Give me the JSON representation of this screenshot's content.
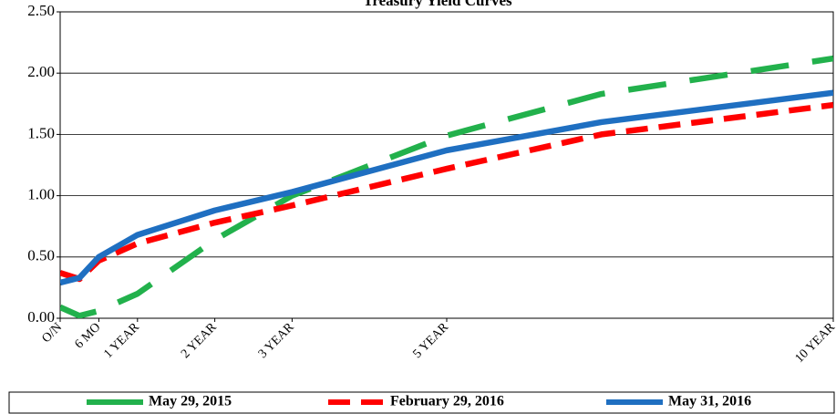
{
  "chart_data": {
    "type": "line",
    "title": "Treasury Yield Curves",
    "x": [
      0,
      0.25,
      0.5,
      1,
      2,
      3,
      5,
      7,
      10
    ],
    "xlim": [
      0,
      10
    ],
    "xticks": [
      {
        "value": 0,
        "label": "O/N"
      },
      {
        "value": 0.5,
        "label": "6 MO"
      },
      {
        "value": 1,
        "label": "1 YEAR"
      },
      {
        "value": 2,
        "label": "2 YEAR"
      },
      {
        "value": 3,
        "label": "3 YEAR"
      },
      {
        "value": 5,
        "label": "5 YEAR"
      },
      {
        "value": 10,
        "label": "10 YEAR"
      }
    ],
    "ylim": [
      0,
      2.5
    ],
    "yticks": [
      {
        "value": 0,
        "label": "0.00"
      },
      {
        "value": 0.5,
        "label": "0.50"
      },
      {
        "value": 1,
        "label": "1.00"
      },
      {
        "value": 1.5,
        "label": "1.50"
      },
      {
        "value": 2,
        "label": "2.00"
      },
      {
        "value": 2.5,
        "label": "2.50"
      }
    ],
    "grid": true,
    "legend": "bottom",
    "series": [
      {
        "name": "May 29, 2015",
        "color": "#22b14c",
        "dash": "long",
        "values": [
          0.09,
          0.02,
          0.06,
          0.2,
          0.64,
          1.0,
          1.49,
          1.83,
          2.12
        ]
      },
      {
        "name": "February 29, 2016",
        "color": "#ff0000",
        "dash": "short",
        "values": [
          0.37,
          0.32,
          0.47,
          0.61,
          0.78,
          0.92,
          1.22,
          1.5,
          1.74
        ]
      },
      {
        "name": "May 31, 2016",
        "color": "#1f6fc1",
        "dash": "solid",
        "values": [
          0.29,
          0.33,
          0.5,
          0.68,
          0.88,
          1.03,
          1.37,
          1.6,
          1.84
        ]
      }
    ]
  }
}
